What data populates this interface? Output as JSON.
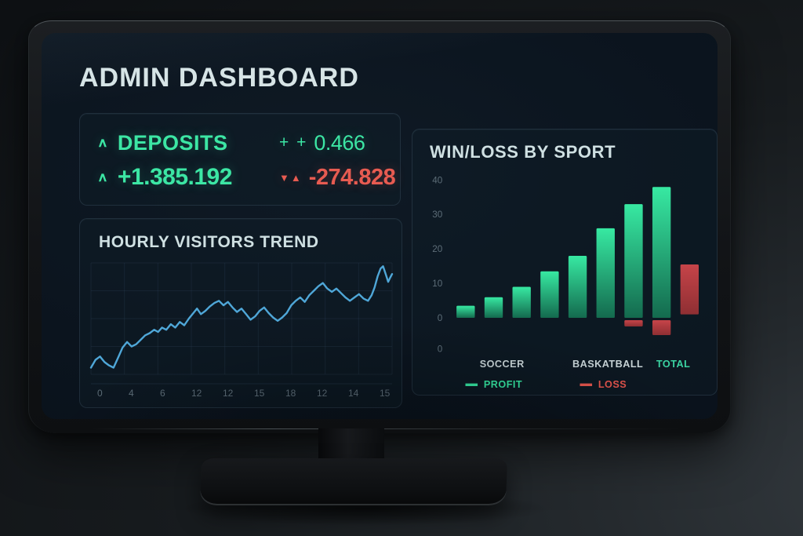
{
  "header": {
    "title": "ADMIN DASHBOARD"
  },
  "deposits": {
    "title": "DEPOSITS",
    "up_icon": "∧",
    "main_value": "+1.385.192",
    "change_prefix": "+ +",
    "change_value": "0.466",
    "negative_icons": "▼▲",
    "negative_value": "-274.828"
  },
  "chart_data": [
    {
      "type": "line",
      "title": "HOURLY VISITORS TREND",
      "xlabel": "",
      "ylabel": "",
      "grid": true,
      "line_color": "#4fa7d8",
      "x_tick_labels": [
        "0",
        "4",
        "6",
        "12",
        "12",
        "15",
        "18",
        "12",
        "14",
        "15"
      ],
      "points": [
        [
          0,
          6
        ],
        [
          1.5,
          13
        ],
        [
          3,
          16
        ],
        [
          4.5,
          11
        ],
        [
          6,
          8
        ],
        [
          7.5,
          6
        ],
        [
          9,
          15
        ],
        [
          10.5,
          24
        ],
        [
          12,
          29
        ],
        [
          13.5,
          25
        ],
        [
          15,
          27
        ],
        [
          16.5,
          31
        ],
        [
          18,
          35
        ],
        [
          19.5,
          37
        ],
        [
          21,
          40
        ],
        [
          22.3,
          38
        ],
        [
          23.6,
          42
        ],
        [
          25,
          40
        ],
        [
          26.5,
          45
        ],
        [
          28,
          42
        ],
        [
          29.5,
          47
        ],
        [
          31,
          44
        ],
        [
          32.5,
          50
        ],
        [
          34,
          55
        ],
        [
          35.2,
          59
        ],
        [
          36.5,
          54
        ],
        [
          38,
          57
        ],
        [
          39.5,
          61
        ],
        [
          41,
          64
        ],
        [
          42.5,
          66
        ],
        [
          44,
          62
        ],
        [
          45.5,
          65
        ],
        [
          47,
          60
        ],
        [
          48.5,
          56
        ],
        [
          50,
          59
        ],
        [
          51.5,
          54
        ],
        [
          53,
          49
        ],
        [
          54.5,
          52
        ],
        [
          56,
          57
        ],
        [
          57.5,
          60
        ],
        [
          59,
          55
        ],
        [
          60.5,
          51
        ],
        [
          62,
          48
        ],
        [
          63.5,
          51
        ],
        [
          65,
          55
        ],
        [
          66.5,
          62
        ],
        [
          68,
          66
        ],
        [
          69.5,
          69
        ],
        [
          71,
          65
        ],
        [
          72.5,
          71
        ],
        [
          74,
          75
        ],
        [
          75.5,
          79
        ],
        [
          77,
          82
        ],
        [
          78.5,
          77
        ],
        [
          80,
          74
        ],
        [
          81.5,
          77
        ],
        [
          83,
          73
        ],
        [
          84.5,
          69
        ],
        [
          86,
          66
        ],
        [
          87.5,
          69
        ],
        [
          89,
          72
        ],
        [
          90.5,
          68
        ],
        [
          92,
          66
        ],
        [
          93.2,
          71
        ],
        [
          94.2,
          78
        ],
        [
          95.2,
          88
        ],
        [
          96.2,
          95
        ],
        [
          97,
          97
        ],
        [
          98,
          89
        ],
        [
          98.7,
          83
        ],
        [
          99.4,
          87
        ],
        [
          100,
          90
        ]
      ]
    },
    {
      "type": "bar",
      "title": "WIN/LOSS BY SPORT",
      "ylim": [
        -9,
        42
      ],
      "y_ticks": [
        40,
        30,
        20,
        10,
        0
      ],
      "extra_zero_label": "0",
      "bars": [
        {
          "value": 3.5,
          "series": "profit"
        },
        {
          "value": 6,
          "series": "profit"
        },
        {
          "value": 9,
          "series": "profit"
        },
        {
          "value": 13.5,
          "series": "profit"
        },
        {
          "value": 18,
          "series": "profit"
        },
        {
          "value": 26,
          "series": "profit"
        },
        {
          "value": 33,
          "series": "profit",
          "loss": -2.5
        },
        {
          "value": 38,
          "series": "profit",
          "loss": -5
        },
        {
          "value": 15.5,
          "series": "loss",
          "base": 1
        }
      ],
      "categories": [
        {
          "label": "SOCCER",
          "xf": 0.2,
          "accent": false
        },
        {
          "label": "BASKATBALL",
          "xf": 0.62,
          "accent": false
        },
        {
          "label": "TOTAL",
          "xf": 0.88,
          "accent": true
        }
      ],
      "legend": [
        {
          "label": "PROFIT",
          "color": "#35e3a0"
        },
        {
          "label": "LOSS",
          "color": "#e2544c"
        }
      ],
      "legend_position": "bottom"
    }
  ],
  "colors": {
    "green": "#3ce6a4",
    "red": "#e75b51",
    "pale_text": "#d7e4e6",
    "axis_gray": "#5d6d78",
    "category_text": "#c7d3d6",
    "total_teal": "#3bd3a2",
    "line_blue": "#4fa7d8",
    "bar_green_top": "#37e9a2",
    "bar_green_bottom": "#146a4e",
    "bar_red_top": "#c64449",
    "bar_red_bottom": "#8f2f33",
    "grid_line": "#33485e"
  }
}
